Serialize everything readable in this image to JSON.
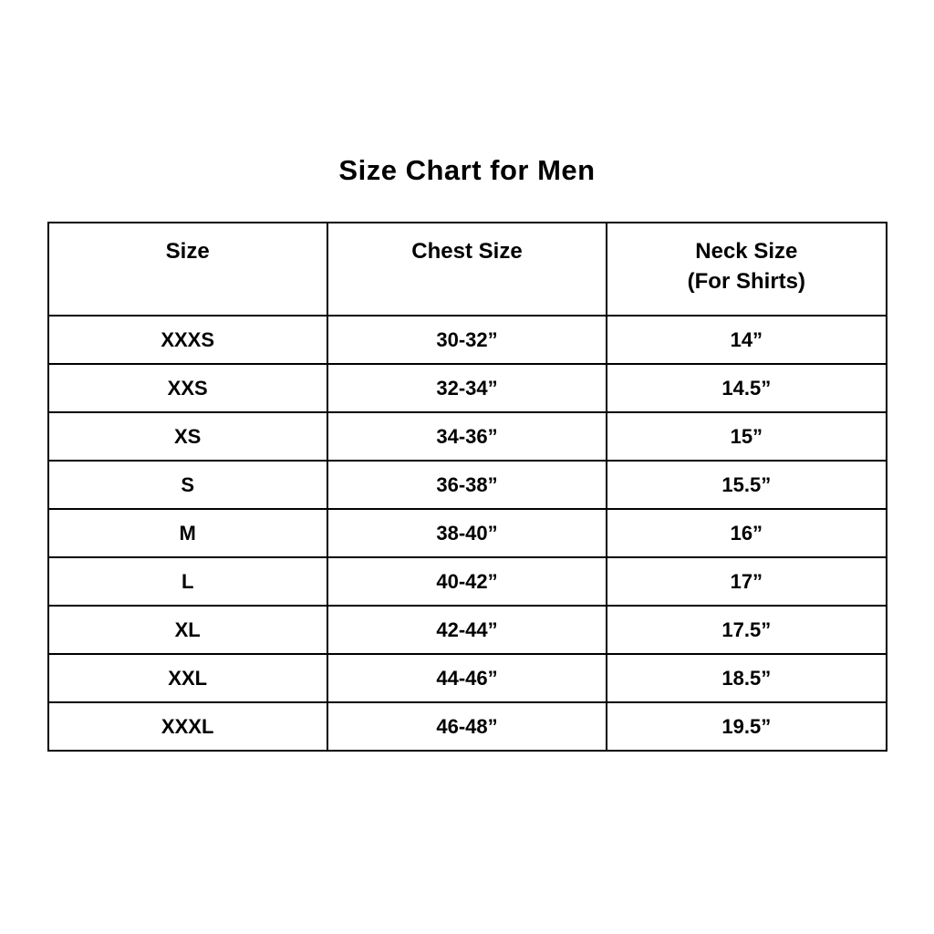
{
  "colors": {
    "text": "#000000",
    "border": "#000000",
    "background": "#ffffff"
  },
  "chart_data": {
    "type": "table",
    "title": "Size Chart for Men",
    "columns": [
      "Size",
      "Chest Size",
      "Neck Size"
    ],
    "column_subtitles": [
      "",
      "",
      "(For Shirts)"
    ],
    "rows": [
      [
        "XXXS",
        "30-32”",
        "14”"
      ],
      [
        "XXS",
        "32-34”",
        "14.5”"
      ],
      [
        "XS",
        "34-36”",
        "15”"
      ],
      [
        "S",
        "36-38”",
        "15.5”"
      ],
      [
        "M",
        "38-40”",
        "16”"
      ],
      [
        "L",
        "40-42”",
        "17”"
      ],
      [
        "XL",
        "42-44”",
        "17.5”"
      ],
      [
        "XXL",
        "44-46”",
        "18.5”"
      ],
      [
        "XXXL",
        "46-48”",
        "19.5”"
      ]
    ]
  }
}
